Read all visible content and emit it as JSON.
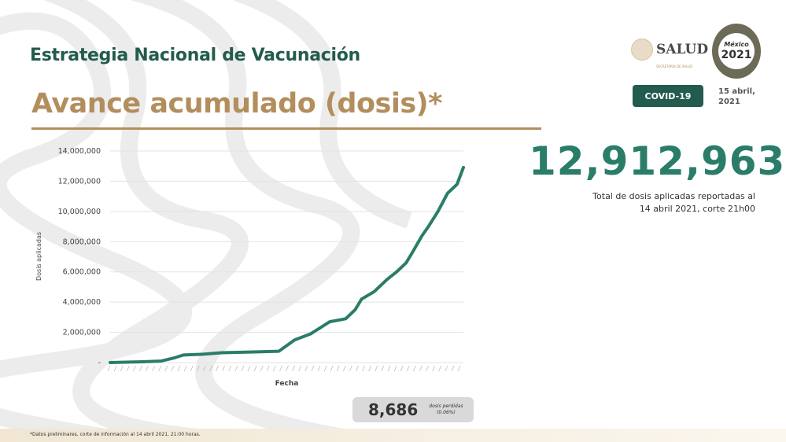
{
  "header": {
    "title": "Estrategia Nacional de Vacunación",
    "subtitle": "Avance acumulado (dosis)*"
  },
  "logos": {
    "salud": "SALUD",
    "salud_sub": "SECRETARÍA DE SALUD",
    "emblem_title": "México",
    "emblem_year": "2021"
  },
  "badge": "COVID-19",
  "date": [
    "15 abril,",
    "2021"
  ],
  "total": {
    "value": "12,912,963",
    "caption_line1": "Total de dosis aplicadas reportadas al",
    "caption_line2": "14 abril 2021, corte 21h00"
  },
  "lost": {
    "value": "8,686",
    "label_line1": "dosis perdidas",
    "label_line2": "(0.06%)"
  },
  "footnote": "*Datos preliminares, corte de información al 14 abril 2021, 21:00 horas.",
  "colors": {
    "green": "#235b4e",
    "line": "#2a7d68",
    "gold": "#b38e5d"
  },
  "chart_data": {
    "type": "line",
    "xlabel": "Fecha",
    "ylabel": "Dosis aplicadas",
    "ylim": [
      0,
      14000000
    ],
    "yticks": [
      "-",
      "2,000,000",
      "4,000,000",
      "6,000,000",
      "8,000,000",
      "10,000,000",
      "12,000,000",
      "14,000,000"
    ],
    "grid": true,
    "x": [
      "2020-12-24",
      "2021-01-03",
      "2021-01-09",
      "2021-01-13",
      "2021-01-16",
      "2021-01-22",
      "2021-01-28",
      "2021-02-07",
      "2021-02-15",
      "2021-02-20",
      "2021-02-25",
      "2021-02-28",
      "2021-03-03",
      "2021-03-08",
      "2021-03-11",
      "2021-03-13",
      "2021-03-17",
      "2021-03-21",
      "2021-03-24",
      "2021-03-27",
      "2021-03-29",
      "2021-04-01",
      "2021-04-03",
      "2021-04-06",
      "2021-04-09",
      "2021-04-12",
      "2021-04-14"
    ],
    "values": [
      0,
      50000,
      100000,
      300000,
      500000,
      550000,
      650000,
      700000,
      750000,
      1500000,
      1900000,
      2300000,
      2700000,
      2900000,
      3500000,
      4200000,
      4700000,
      5500000,
      6000000,
      6600000,
      7300000,
      8400000,
      9000000,
      10000000,
      11200000,
      11800000,
      12912963
    ]
  }
}
